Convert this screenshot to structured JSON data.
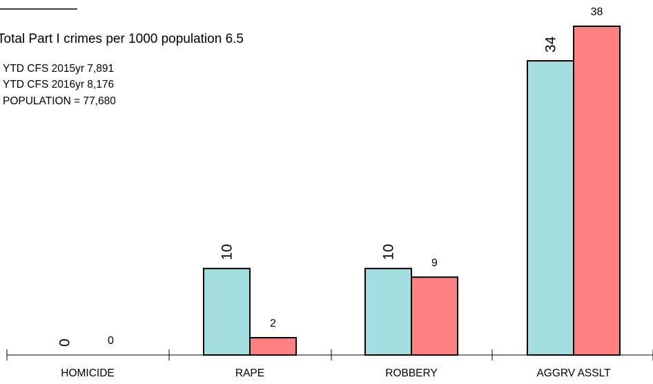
{
  "chart_data": {
    "type": "bar",
    "categories": [
      "HOMICIDE",
      "RAPE",
      "ROBBERY",
      "AGGRV ASSLT"
    ],
    "series": [
      {
        "values": [
          0,
          10,
          10,
          34
        ],
        "color": "#a3dfe0",
        "label_rotated": true
      },
      {
        "values": [
          0,
          2,
          9,
          38
        ],
        "color": "#fe8080",
        "label_rotated": false
      }
    ],
    "annotations": [
      "Total Part I crimes per 1000 population 6.5",
      "YTD CFS 2015yr  7,891",
      "YTD CFS 2016yr  8,176",
      "POPULATION = 77,680"
    ],
    "ylim": [
      0,
      38
    ],
    "grid": false,
    "legend": "none"
  }
}
